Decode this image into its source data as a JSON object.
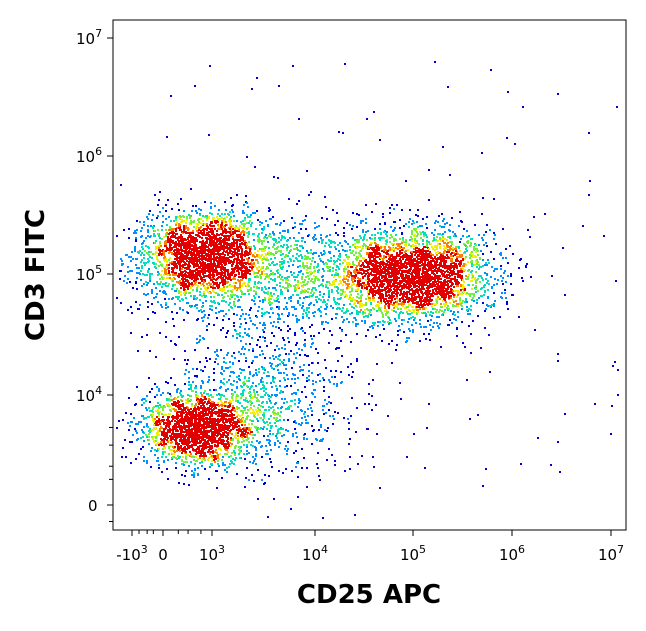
{
  "chart_data": {
    "type": "scatter",
    "subtype": "flow-cytometry-density-plot",
    "xlabel": "CD25 APC",
    "ylabel": "CD3 FITC",
    "x_scale": "biexponential",
    "y_scale": "biexponential",
    "xlim": [
      -2000,
      15000000
    ],
    "ylim": [
      -600,
      15000000
    ],
    "grid": false,
    "legend": "none",
    "x_ticks": [
      {
        "base": "-10",
        "exp": "3",
        "value": -1000
      },
      {
        "base": "0",
        "exp": "",
        "value": 0
      },
      {
        "base": "10",
        "exp": "3",
        "value": 1000
      },
      {
        "base": "10",
        "exp": "4",
        "value": 10000
      },
      {
        "base": "10",
        "exp": "5",
        "value": 100000
      },
      {
        "base": "10",
        "exp": "6",
        "value": 1000000
      },
      {
        "base": "10",
        "exp": "7",
        "value": 10000000
      }
    ],
    "y_ticks": [
      {
        "base": "0",
        "exp": "",
        "value": 0
      },
      {
        "base": "10",
        "exp": "4",
        "value": 10000
      },
      {
        "base": "10",
        "exp": "5",
        "value": 100000
      },
      {
        "base": "10",
        "exp": "6",
        "value": 1000000
      },
      {
        "base": "10",
        "exp": "7",
        "value": 10000000
      }
    ],
    "density_colormap": [
      "#0000d0",
      "#0090ff",
      "#00e0c0",
      "#70f040",
      "#f0f000",
      "#ff8000",
      "#e00000"
    ],
    "populations": [
      {
        "x": 500,
        "y": 3000,
        "density": "high"
      },
      {
        "x": 700,
        "y": 150000,
        "density": "high"
      },
      {
        "x": 100000,
        "y": 100000,
        "density": "high"
      },
      {
        "x": 5000,
        "y": 100000,
        "density": "low"
      },
      {
        "x": 3000,
        "y": 10000,
        "density": "low"
      }
    ]
  }
}
